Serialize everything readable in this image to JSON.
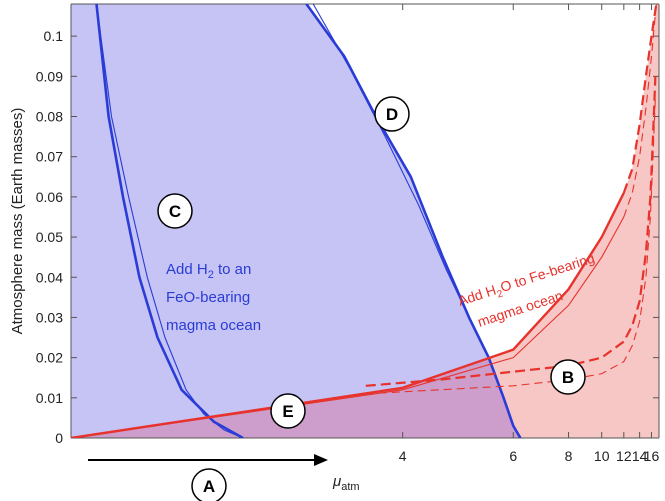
{
  "chart_data": {
    "type": "area",
    "xlabel": "μ",
    "xlabel_sub": "atm",
    "ylabel": "Atmosphere mass (Earth masses)",
    "xscale": "reciprocal",
    "xlim": [
      2,
      18
    ],
    "ylim": [
      0,
      0.108
    ],
    "xticks": [
      4,
      6,
      8,
      10,
      12,
      14,
      16
    ],
    "yticks": [
      0,
      0.01,
      0.02,
      0.03,
      0.04,
      0.05,
      0.06,
      0.07,
      0.08,
      0.09,
      0.1
    ],
    "colors": {
      "blue_region": "#c6c4f5",
      "red_region": "#f7c7c6",
      "overlap_region": "#cd9ecb",
      "blue_line": "#2a3cd6",
      "red_line": "#e8322c"
    },
    "region_markers": [
      {
        "id": "A",
        "x": 3.5,
        "y": -0.0055
      },
      {
        "id": "B",
        "x": 13.5,
        "y": 0.016
      },
      {
        "id": "C",
        "x": 3.0,
        "y": 0.058
      },
      {
        "id": "D",
        "x": 6.5,
        "y": 0.09
      },
      {
        "id": "E",
        "x": 4.5,
        "y": 0.006
      }
    ],
    "annotations": {
      "blue": [
        "Add H₂ to an",
        "FeO-bearing",
        "magma ocean"
      ],
      "red": [
        "Add H₂O to Fe-bearing",
        "magma ocean"
      ]
    },
    "series": [
      {
        "style": "blue-thick",
        "points": [
          [
            2.08,
            0.108
          ],
          [
            2.12,
            0.08
          ],
          [
            2.17,
            0.06
          ],
          [
            2.23,
            0.04
          ],
          [
            2.3,
            0.025
          ],
          [
            2.4,
            0.012
          ],
          [
            2.55,
            0.004
          ],
          [
            2.7,
            0
          ]
        ]
      },
      {
        "style": "blue-thin",
        "points": [
          [
            2.08,
            0.108
          ],
          [
            2.13,
            0.08
          ],
          [
            2.19,
            0.06
          ],
          [
            2.26,
            0.04
          ],
          [
            2.33,
            0.025
          ],
          [
            2.42,
            0.012
          ],
          [
            2.5,
            0.006
          ],
          [
            2.6,
            0.002
          ],
          [
            2.7,
            0
          ]
        ]
      },
      {
        "style": "blue-thick",
        "points": [
          [
            3.1,
            0.108
          ],
          [
            3.4,
            0.095
          ],
          [
            3.7,
            0.08
          ],
          [
            4.1,
            0.065
          ],
          [
            4.55,
            0.045
          ],
          [
            5.0,
            0.03
          ],
          [
            5.4,
            0.02
          ],
          [
            5.75,
            0.01
          ],
          [
            6.0,
            0.003
          ],
          [
            6.2,
            0
          ]
        ]
      },
      {
        "style": "blue-thin",
        "points": [
          [
            3.15,
            0.108
          ],
          [
            3.45,
            0.092
          ],
          [
            3.8,
            0.075
          ],
          [
            4.2,
            0.058
          ],
          [
            4.6,
            0.042
          ],
          [
            5.0,
            0.03
          ],
          [
            5.4,
            0.02
          ],
          [
            5.75,
            0.01
          ],
          [
            6.0,
            0.003
          ],
          [
            6.2,
            0
          ]
        ]
      },
      {
        "style": "red-solid-thick",
        "points": [
          [
            2,
            0
          ],
          [
            4,
            0.0125
          ],
          [
            6,
            0.022
          ],
          [
            8,
            0.037
          ],
          [
            10,
            0.05
          ],
          [
            12,
            0.061
          ]
        ]
      },
      {
        "style": "red-dash-thick",
        "points": [
          [
            12,
            0.061
          ],
          [
            13,
            0.067
          ],
          [
            14,
            0.078
          ],
          [
            15,
            0.09
          ],
          [
            16,
            0.1
          ],
          [
            17,
            0.108
          ]
        ]
      },
      {
        "style": "red-solid-thin",
        "points": [
          [
            2,
            0
          ],
          [
            4,
            0.012
          ],
          [
            6,
            0.02
          ],
          [
            8,
            0.033
          ],
          [
            10,
            0.045
          ],
          [
            12,
            0.055
          ]
        ]
      },
      {
        "style": "red-dash-thin",
        "points": [
          [
            12,
            0.055
          ],
          [
            13,
            0.061
          ],
          [
            14,
            0.07
          ],
          [
            15,
            0.082
          ],
          [
            16,
            0.095
          ],
          [
            17,
            0.108
          ]
        ]
      },
      {
        "style": "red-dash-thick",
        "points": [
          [
            3.6,
            0.013
          ],
          [
            4.5,
            0.0145
          ],
          [
            6,
            0.0165
          ],
          [
            8,
            0.018
          ],
          [
            10,
            0.02
          ],
          [
            12,
            0.024
          ],
          [
            13,
            0.028
          ],
          [
            14,
            0.034
          ],
          [
            15,
            0.046
          ],
          [
            15.8,
            0.06
          ],
          [
            16.3,
            0.075
          ],
          [
            16.8,
            0.09
          ]
        ]
      },
      {
        "style": "red-dash-thin",
        "points": [
          [
            3.6,
            0.011
          ],
          [
            4.5,
            0.012
          ],
          [
            6,
            0.013
          ],
          [
            8,
            0.0145
          ],
          [
            10,
            0.016
          ],
          [
            12,
            0.019
          ],
          [
            13,
            0.023
          ],
          [
            14,
            0.029
          ],
          [
            15,
            0.04
          ],
          [
            15.8,
            0.055
          ],
          [
            16.3,
            0.07
          ],
          [
            16.8,
            0.085
          ]
        ]
      }
    ]
  }
}
